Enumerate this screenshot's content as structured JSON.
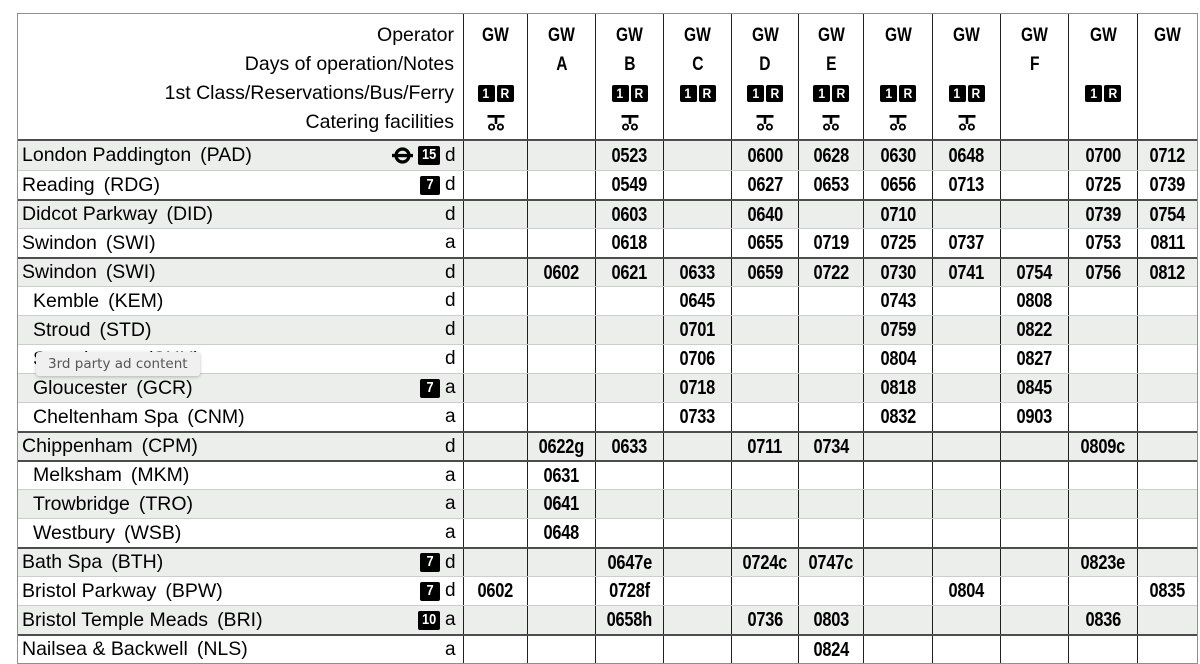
{
  "header": {
    "row_labels": [
      "Operator",
      "Days of operation/Notes",
      "1st Class/Reservations/Bus/Ferry",
      "Catering facilities"
    ],
    "icons": {
      "first_class": "1",
      "reservation": "R",
      "catering": "trolley-icon"
    },
    "columns": [
      {
        "operator": "GW",
        "note": "",
        "first_class_res": true,
        "catering": true
      },
      {
        "operator": "GW",
        "note": "A",
        "first_class_res": false,
        "catering": false
      },
      {
        "operator": "GW",
        "note": "B",
        "first_class_res": true,
        "catering": true
      },
      {
        "operator": "GW",
        "note": "C",
        "first_class_res": true,
        "catering": false
      },
      {
        "operator": "GW",
        "note": "D",
        "first_class_res": true,
        "catering": true
      },
      {
        "operator": "GW",
        "note": "E",
        "first_class_res": true,
        "catering": true
      },
      {
        "operator": "GW",
        "note": "",
        "first_class_res": true,
        "catering": true
      },
      {
        "operator": "GW",
        "note": "",
        "first_class_res": true,
        "catering": true
      },
      {
        "operator": "GW",
        "note": "F",
        "first_class_res": false,
        "catering": false
      },
      {
        "operator": "GW",
        "note": "",
        "first_class_res": true,
        "catering": false
      },
      {
        "operator": "GW",
        "note": "",
        "first_class_res": false,
        "catering": false
      }
    ]
  },
  "stations": [
    {
      "name": "London Paddington",
      "code": "PAD",
      "underground": true,
      "interchange": "15",
      "ad": "d",
      "indent": false,
      "group_start": false,
      "times": [
        "",
        "",
        "0523",
        "",
        "0600",
        "0628",
        "0630",
        "0648",
        "",
        "0700",
        "0712"
      ]
    },
    {
      "name": "Reading",
      "code": "RDG",
      "underground": false,
      "interchange": "7",
      "ad": "d",
      "indent": false,
      "group_start": false,
      "times": [
        "",
        "",
        "0549",
        "",
        "0627",
        "0653",
        "0656",
        "0713",
        "",
        "0725",
        "0739"
      ]
    },
    {
      "name": "Didcot Parkway",
      "code": "DID",
      "underground": false,
      "interchange": "",
      "ad": "d",
      "indent": false,
      "group_start": true,
      "times": [
        "",
        "",
        "0603",
        "",
        "0640",
        "",
        "0710",
        "",
        "",
        "0739",
        "0754"
      ]
    },
    {
      "name": "Swindon",
      "code": "SWI",
      "underground": false,
      "interchange": "",
      "ad": "a",
      "indent": false,
      "group_start": false,
      "times": [
        "",
        "",
        "0618",
        "",
        "0655",
        "0719",
        "0725",
        "0737",
        "",
        "0753",
        "0811"
      ]
    },
    {
      "name": "Swindon",
      "code": "SWI",
      "underground": false,
      "interchange": "",
      "ad": "d",
      "indent": false,
      "group_start": true,
      "times": [
        "",
        "0602",
        "0621",
        "0633",
        "0659",
        "0722",
        "0730",
        "0741",
        "0754",
        "0756",
        "0812"
      ]
    },
    {
      "name": "Kemble",
      "code": "KEM",
      "underground": false,
      "interchange": "",
      "ad": "d",
      "indent": true,
      "group_start": false,
      "times": [
        "",
        "",
        "",
        "0645",
        "",
        "",
        "0743",
        "",
        "0808",
        "",
        ""
      ]
    },
    {
      "name": "Stroud",
      "code": "STD",
      "underground": false,
      "interchange": "",
      "ad": "d",
      "indent": true,
      "group_start": false,
      "times": [
        "",
        "",
        "",
        "0701",
        "",
        "",
        "0759",
        "",
        "0822",
        "",
        ""
      ]
    },
    {
      "name": "Stonehouse",
      "code": "SHU",
      "underground": false,
      "interchange": "",
      "ad": "d",
      "indent": true,
      "group_start": false,
      "times": [
        "",
        "",
        "",
        "0706",
        "",
        "",
        "0804",
        "",
        "0827",
        "",
        ""
      ]
    },
    {
      "name": "Gloucester",
      "code": "GCR",
      "underground": false,
      "interchange": "7",
      "ad": "a",
      "indent": true,
      "group_start": false,
      "times": [
        "",
        "",
        "",
        "0718",
        "",
        "",
        "0818",
        "",
        "0845",
        "",
        ""
      ]
    },
    {
      "name": "Cheltenham Spa",
      "code": "CNM",
      "underground": false,
      "interchange": "",
      "ad": "a",
      "indent": true,
      "group_start": false,
      "times": [
        "",
        "",
        "",
        "0733",
        "",
        "",
        "0832",
        "",
        "0903",
        "",
        ""
      ]
    },
    {
      "name": "Chippenham",
      "code": "CPM",
      "underground": false,
      "interchange": "",
      "ad": "d",
      "indent": false,
      "group_start": true,
      "times": [
        "",
        "0622g",
        "0633",
        "",
        "0711",
        "0734",
        "",
        "",
        "",
        "0809c",
        ""
      ]
    },
    {
      "name": "Melksham",
      "code": "MKM",
      "underground": false,
      "interchange": "",
      "ad": "a",
      "indent": true,
      "group_start": true,
      "times": [
        "",
        "0631",
        "",
        "",
        "",
        "",
        "",
        "",
        "",
        "",
        ""
      ]
    },
    {
      "name": "Trowbridge",
      "code": "TRO",
      "underground": false,
      "interchange": "",
      "ad": "a",
      "indent": true,
      "group_start": false,
      "times": [
        "",
        "0641",
        "",
        "",
        "",
        "",
        "",
        "",
        "",
        "",
        ""
      ]
    },
    {
      "name": "Westbury",
      "code": "WSB",
      "underground": false,
      "interchange": "",
      "ad": "a",
      "indent": true,
      "group_start": false,
      "times": [
        "",
        "0648",
        "",
        "",
        "",
        "",
        "",
        "",
        "",
        "",
        ""
      ]
    },
    {
      "name": "Bath Spa",
      "code": "BTH",
      "underground": false,
      "interchange": "7",
      "ad": "d",
      "indent": false,
      "group_start": true,
      "times": [
        "",
        "",
        "0647e",
        "",
        "0724c",
        "0747c",
        "",
        "",
        "",
        "0823e",
        ""
      ]
    },
    {
      "name": "Bristol Parkway",
      "code": "BPW",
      "underground": false,
      "interchange": "7",
      "ad": "d",
      "indent": false,
      "group_start": false,
      "times": [
        "0602",
        "",
        "0728f",
        "",
        "",
        "",
        "",
        "0804",
        "",
        "",
        "0835"
      ]
    },
    {
      "name": "Bristol Temple Meads",
      "code": "BRI",
      "underground": false,
      "interchange": "10",
      "ad": "a",
      "indent": false,
      "group_start": false,
      "times": [
        "",
        "",
        "0658h",
        "",
        "0736",
        "0803",
        "",
        "",
        "",
        "0836",
        ""
      ]
    },
    {
      "name": "Nailsea & Backwell",
      "code": "NLS",
      "underground": false,
      "interchange": "",
      "ad": "a",
      "indent": false,
      "group_start": true,
      "times": [
        "",
        "",
        "",
        "",
        "",
        "0824",
        "",
        "",
        "",
        "",
        ""
      ]
    }
  ],
  "ad_overlay": {
    "text": "3rd party ad content"
  },
  "colors": {
    "row_shade": "#ebeeeb",
    "grid_line": "#1f1f1f",
    "group_line": "#4d4d4d",
    "badge_bg": "#000000"
  }
}
